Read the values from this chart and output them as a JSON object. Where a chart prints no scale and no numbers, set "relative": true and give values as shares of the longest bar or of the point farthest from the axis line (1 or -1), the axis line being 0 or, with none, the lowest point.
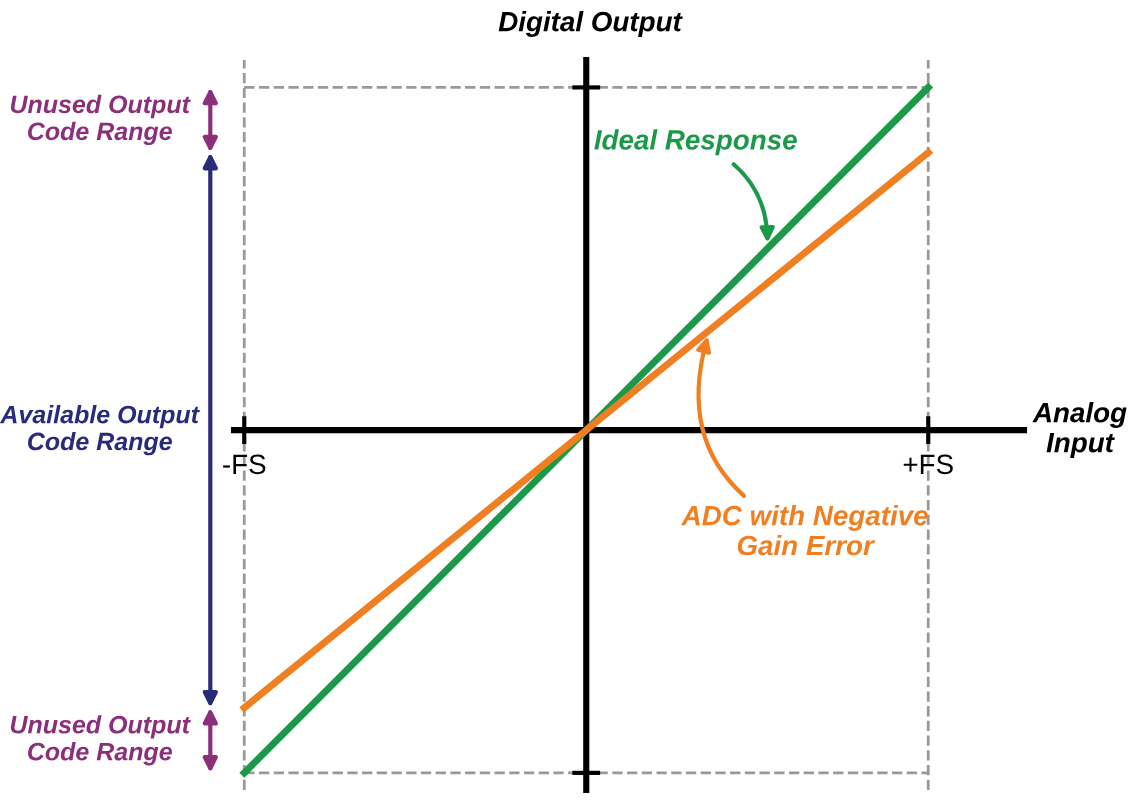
{
  "chart_data": {
    "type": "line",
    "relative": true,
    "xlabel": "Analog\nInput",
    "ylabel": "Digital Output",
    "categories": [
      "-FS",
      null,
      "+FS"
    ],
    "series": [
      {
        "name": "Ideal Response",
        "color": "#1a9a48",
        "values": [
          -1,
          0,
          1
        ]
      },
      {
        "name": "ADC with Negative\nGain Error",
        "color": "#f07f22",
        "values": [
          -0.81,
          0,
          0.81
        ]
      }
    ],
    "annotations": [
      "Unused Output\nCode Range",
      "Available Output\nCode Range",
      "Unused Output\nCode Range"
    ],
    "grid": "x",
    "legend": false,
    "marker": "none",
    "line_style": "solid"
  }
}
